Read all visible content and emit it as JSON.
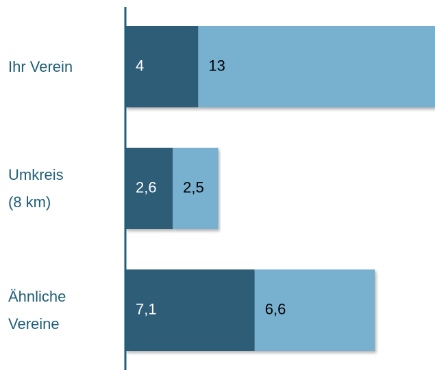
{
  "chart_data": {
    "type": "stacked-bar-horizontal",
    "categories": [
      "Ihr Verein",
      "Umkreis\n(8 km)",
      "Ähnliche\nVereine"
    ],
    "series": [
      {
        "color": "#2d5d78",
        "values": [
          4,
          2.6,
          7.1
        ],
        "value_labels": [
          "4",
          "2,6",
          "7,1"
        ]
      },
      {
        "color": "#78b0d0",
        "values": [
          13,
          2.5,
          6.6
        ],
        "value_labels": [
          "13",
          "2,5",
          "6,6"
        ]
      }
    ],
    "xlim": [
      0,
      17
    ]
  }
}
